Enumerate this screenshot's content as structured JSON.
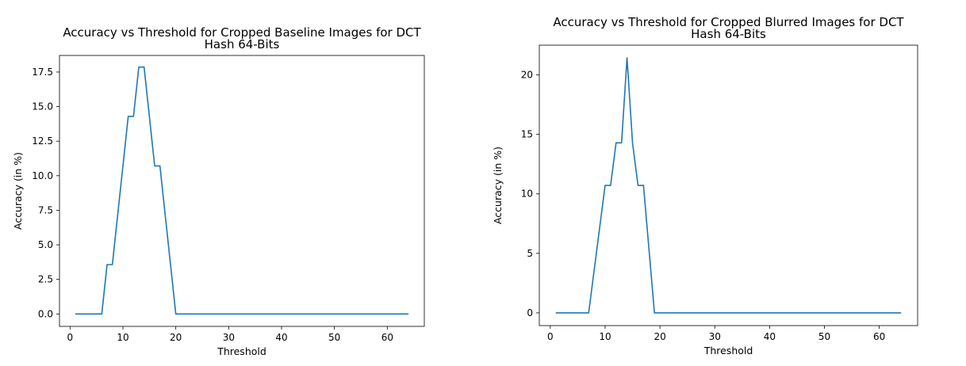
{
  "chart_data": [
    {
      "type": "line",
      "title_lines": [
        "Accuracy vs Threshold for Cropped Baseline Images for DCT",
        "Hash 64-Bits"
      ],
      "xlabel": "Threshold",
      "ylabel": "Accuracy (in %)",
      "xlim": [
        -2,
        67
      ],
      "ylim": [
        -0.9,
        18.7
      ],
      "xticks": [
        0,
        10,
        20,
        30,
        40,
        50,
        60
      ],
      "yticks": [
        0.0,
        2.5,
        5.0,
        7.5,
        10.0,
        12.5,
        15.0,
        17.5
      ],
      "ytick_labels": [
        "0.0",
        "2.5",
        "5.0",
        "7.5",
        "10.0",
        "12.5",
        "15.0",
        "17.5"
      ],
      "grid": false,
      "color": "#1f77b4",
      "series": [
        {
          "x": [
            1,
            2,
            3,
            4,
            5,
            6,
            7,
            8,
            9,
            10,
            11,
            12,
            13,
            14,
            15,
            16,
            17,
            18,
            19,
            20,
            21,
            22,
            23,
            24,
            25,
            26,
            27,
            28,
            29,
            30,
            31,
            32,
            33,
            34,
            35,
            36,
            37,
            38,
            39,
            40,
            41,
            42,
            43,
            44,
            45,
            46,
            47,
            48,
            49,
            50,
            51,
            52,
            53,
            54,
            55,
            56,
            57,
            58,
            59,
            60,
            61,
            62,
            63,
            64
          ],
          "values": [
            0,
            0,
            0,
            0,
            0,
            0,
            3.57,
            3.57,
            7.14,
            10.71,
            14.29,
            14.29,
            17.86,
            17.86,
            14.29,
            10.71,
            10.71,
            7.14,
            3.57,
            0,
            0,
            0,
            0,
            0,
            0,
            0,
            0,
            0,
            0,
            0,
            0,
            0,
            0,
            0,
            0,
            0,
            0,
            0,
            0,
            0,
            0,
            0,
            0,
            0,
            0,
            0,
            0,
            0,
            0,
            0,
            0,
            0,
            0,
            0,
            0,
            0,
            0,
            0,
            0,
            0,
            0,
            0,
            0,
            0
          ]
        }
      ]
    },
    {
      "type": "line",
      "title_lines": [
        "Accuracy vs Threshold for Cropped Blurred Images for DCT",
        "Hash 64-Bits"
      ],
      "xlabel": "Threshold",
      "ylabel": "Accuracy (in %)",
      "xlim": [
        -2,
        67
      ],
      "ylim": [
        -1.07,
        22.5
      ],
      "xticks": [
        0,
        10,
        20,
        30,
        40,
        50,
        60
      ],
      "yticks": [
        0,
        5,
        10,
        15,
        20
      ],
      "ytick_labels": [
        "0",
        "5",
        "10",
        "15",
        "20"
      ],
      "grid": false,
      "color": "#1f77b4",
      "series": [
        {
          "x": [
            1,
            2,
            3,
            4,
            5,
            6,
            7,
            8,
            9,
            10,
            11,
            12,
            13,
            14,
            15,
            16,
            17,
            18,
            19,
            20,
            21,
            22,
            23,
            24,
            25,
            26,
            27,
            28,
            29,
            30,
            31,
            32,
            33,
            34,
            35,
            36,
            37,
            38,
            39,
            40,
            41,
            42,
            43,
            44,
            45,
            46,
            47,
            48,
            49,
            50,
            51,
            52,
            53,
            54,
            55,
            56,
            57,
            58,
            59,
            60,
            61,
            62,
            63,
            64
          ],
          "values": [
            0,
            0,
            0,
            0,
            0,
            0,
            0,
            3.57,
            7.14,
            10.71,
            10.71,
            14.29,
            14.29,
            21.43,
            14.29,
            10.71,
            10.71,
            5.36,
            0,
            0,
            0,
            0,
            0,
            0,
            0,
            0,
            0,
            0,
            0,
            0,
            0,
            0,
            0,
            0,
            0,
            0,
            0,
            0,
            0,
            0,
            0,
            0,
            0,
            0,
            0,
            0,
            0,
            0,
            0,
            0,
            0,
            0,
            0,
            0,
            0,
            0,
            0,
            0,
            0,
            0,
            0,
            0,
            0,
            0
          ]
        }
      ]
    }
  ]
}
